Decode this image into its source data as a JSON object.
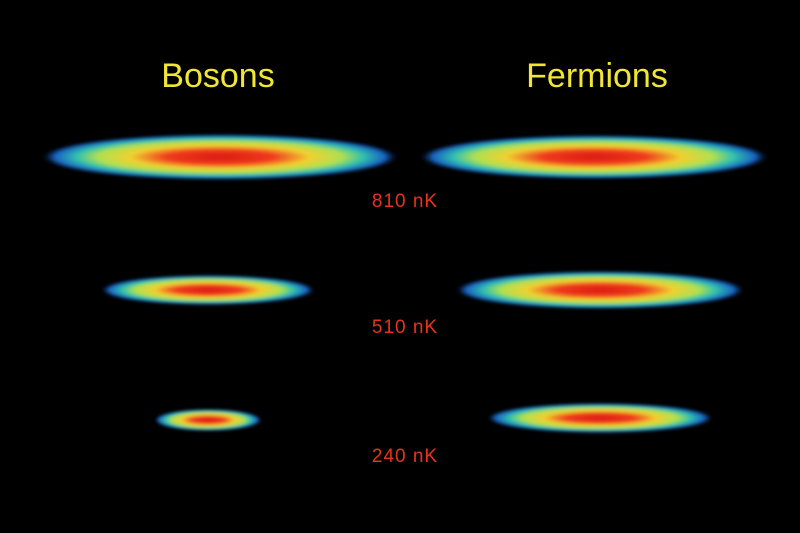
{
  "columns": [
    "Bosons",
    "Fermions"
  ],
  "temperatures": [
    "810 nK",
    "510 nK",
    "240 nK"
  ]
}
